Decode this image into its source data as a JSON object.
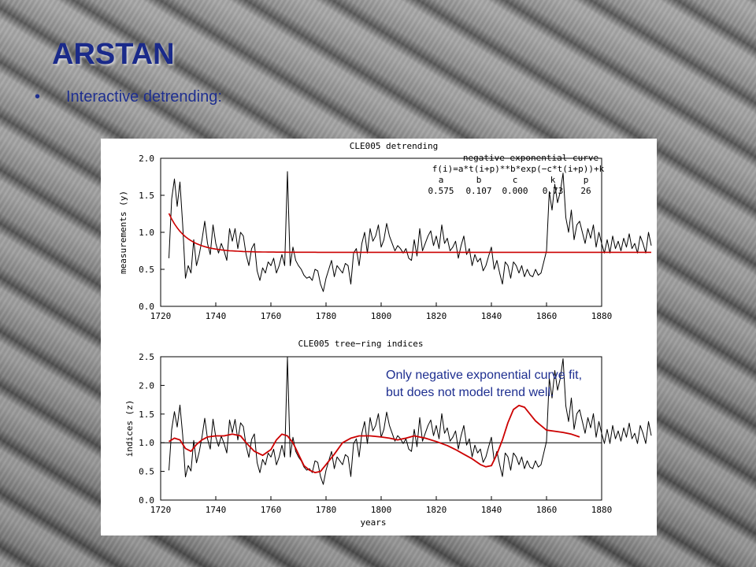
{
  "slide": {
    "title": "ARSTAN",
    "bullet": "Interactive detrending:",
    "annotation": {
      "line1": "Only negative exponential curve fit,",
      "line2": "but does not model trend well."
    }
  },
  "colors": {
    "title": "#1a2a8a",
    "text": "#1e2f90",
    "series_raw": "#000000",
    "series_fit": "#cc0000"
  },
  "chart_data": [
    {
      "type": "line",
      "title": "CLE005 detrending",
      "ylabel": "measurements (y)",
      "xlabel": "",
      "xlim": [
        1720,
        1880
      ],
      "ylim": [
        0.0,
        2.0
      ],
      "x_ticks": [
        1720,
        1740,
        1760,
        1780,
        1800,
        1820,
        1840,
        1860,
        1880
      ],
      "y_ticks": [
        "0.0",
        "0.5",
        "1.0",
        "1.5",
        "2.0"
      ],
      "y_tick_values": [
        0,
        0.5,
        1.0,
        1.5,
        2.0
      ],
      "legend": {
        "heading": "negative exponential curve",
        "formula": "f(i)=a*t(i+p)**b*exp(−c*t(i+p))+k",
        "param_names": [
          "a",
          "b",
          "c",
          "k",
          "p"
        ],
        "param_values": [
          "0.575",
          "0.107",
          "0.000",
          "0.73",
          "26"
        ]
      },
      "x_start": 1723,
      "series": [
        {
          "type": "raw",
          "values": [
            0.65,
            1.45,
            1.72,
            1.35,
            1.68,
            1.1,
            0.38,
            0.55,
            0.45,
            0.9,
            0.55,
            0.7,
            0.9,
            1.15,
            0.85,
            0.7,
            1.1,
            0.85,
            0.72,
            0.85,
            0.75,
            0.62,
            1.05,
            0.88,
            1.05,
            0.78,
            1.0,
            0.95,
            0.7,
            0.55,
            0.78,
            0.85,
            0.48,
            0.35,
            0.52,
            0.45,
            0.6,
            0.55,
            0.65,
            0.45,
            0.55,
            0.7,
            0.55,
            1.82,
            0.55,
            0.8,
            0.62,
            0.55,
            0.5,
            0.42,
            0.38,
            0.4,
            0.35,
            0.5,
            0.48,
            0.3,
            0.2,
            0.38,
            0.5,
            0.62,
            0.4,
            0.55,
            0.5,
            0.45,
            0.58,
            0.55,
            0.3,
            0.72,
            0.78,
            0.55,
            0.85,
            1.0,
            0.72,
            1.05,
            0.88,
            0.95,
            1.1,
            0.8,
            0.9,
            1.12,
            0.95,
            0.85,
            0.75,
            0.82,
            0.78,
            0.72,
            0.78,
            0.65,
            0.62,
            0.9,
            0.68,
            1.05,
            0.75,
            0.85,
            0.95,
            1.02,
            0.82,
            0.95,
            0.78,
            1.1,
            0.85,
            0.92,
            0.75,
            0.8,
            0.88,
            0.65,
            0.82,
            0.95,
            0.7,
            0.78,
            0.55,
            0.7,
            0.6,
            0.65,
            0.48,
            0.55,
            0.68,
            0.8,
            0.5,
            0.62,
            0.45,
            0.3,
            0.6,
            0.55,
            0.38,
            0.6,
            0.55,
            0.45,
            0.55,
            0.4,
            0.5,
            0.42,
            0.4,
            0.5,
            0.42,
            0.45,
            0.6,
            0.75,
            1.55,
            1.3,
            1.65,
            1.4,
            1.55,
            1.8,
            1.2,
            1.0,
            1.3,
            0.9,
            1.1,
            1.15,
            1.0,
            0.85,
            1.05,
            0.92,
            1.1,
            0.8,
            1.0,
            0.85,
            0.72,
            0.9,
            0.72,
            0.95,
            0.78,
            0.88,
            0.75,
            0.92,
            0.8,
            0.98,
            0.78,
            0.85,
            0.72,
            0.95,
            0.85,
            0.72,
            1.0,
            0.82
          ]
        },
        {
          "type": "fit",
          "model": "negative exponential",
          "a": 0.575,
          "b": 0.107,
          "c": 0.0,
          "k": 0.73,
          "p": 26
        }
      ]
    },
    {
      "type": "line",
      "title": "CLE005 tree−ring indices",
      "ylabel": "indices (z)",
      "xlabel": "years",
      "xlim": [
        1720,
        1880
      ],
      "ylim": [
        0.0,
        2.5
      ],
      "x_ticks": [
        1720,
        1740,
        1760,
        1780,
        1800,
        1820,
        1840,
        1860,
        1880
      ],
      "y_ticks": [
        "0.0",
        "0.5",
        "1.0",
        "1.5",
        "2.0",
        "2.5"
      ],
      "y_tick_values": [
        0,
        0.5,
        1.0,
        1.5,
        2.0,
        2.5
      ],
      "reference_line": 1.0,
      "x_start": 1723,
      "series": [
        {
          "type": "indices",
          "derived_from": "raw measurements divided by negative exponential curve"
        },
        {
          "type": "smoothed",
          "points": [
            [
              1723,
              1.02
            ],
            [
              1725,
              1.08
            ],
            [
              1727,
              1.05
            ],
            [
              1729,
              0.9
            ],
            [
              1731,
              0.85
            ],
            [
              1733,
              0.97
            ],
            [
              1735,
              1.05
            ],
            [
              1737,
              1.1
            ],
            [
              1740,
              1.12
            ],
            [
              1743,
              1.12
            ],
            [
              1746,
              1.15
            ],
            [
              1749,
              1.12
            ],
            [
              1751,
              1.0
            ],
            [
              1754,
              0.85
            ],
            [
              1757,
              0.78
            ],
            [
              1760,
              0.88
            ],
            [
              1762,
              1.05
            ],
            [
              1764,
              1.15
            ],
            [
              1766,
              1.12
            ],
            [
              1768,
              1.0
            ],
            [
              1770,
              0.8
            ],
            [
              1772,
              0.6
            ],
            [
              1774,
              0.52
            ],
            [
              1776,
              0.48
            ],
            [
              1778,
              0.5
            ],
            [
              1780,
              0.62
            ],
            [
              1783,
              0.8
            ],
            [
              1786,
              1.0
            ],
            [
              1789,
              1.08
            ],
            [
              1792,
              1.12
            ],
            [
              1796,
              1.12
            ],
            [
              1800,
              1.1
            ],
            [
              1803,
              1.08
            ],
            [
              1806,
              1.05
            ],
            [
              1809,
              1.08
            ],
            [
              1812,
              1.12
            ],
            [
              1816,
              1.08
            ],
            [
              1820,
              1.02
            ],
            [
              1824,
              0.95
            ],
            [
              1827,
              0.88
            ],
            [
              1830,
              0.8
            ],
            [
              1833,
              0.72
            ],
            [
              1836,
              0.62
            ],
            [
              1838,
              0.58
            ],
            [
              1840,
              0.6
            ],
            [
              1842,
              0.8
            ],
            [
              1844,
              1.05
            ],
            [
              1846,
              1.35
            ],
            [
              1848,
              1.58
            ],
            [
              1850,
              1.65
            ],
            [
              1852,
              1.62
            ],
            [
              1854,
              1.5
            ],
            [
              1856,
              1.38
            ],
            [
              1858,
              1.3
            ],
            [
              1860,
              1.22
            ],
            [
              1863,
              1.2
            ],
            [
              1866,
              1.18
            ],
            [
              1869,
              1.15
            ],
            [
              1872,
              1.1
            ]
          ]
        }
      ]
    }
  ]
}
